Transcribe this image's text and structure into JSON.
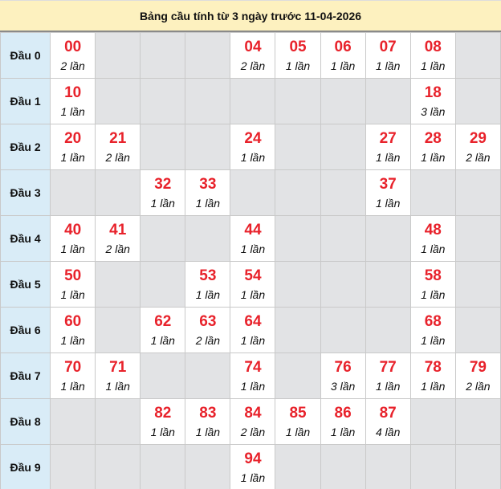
{
  "title": "Bảng cầu tính từ 3 ngày trước 11-04-2026",
  "colors": {
    "header_bg": "#fdf1bf",
    "label_bg": "#d9ecf7",
    "empty_bg": "#e2e3e5",
    "number": "#e8222b"
  },
  "rows": [
    {
      "label": "Đầu 0",
      "cells": [
        {
          "num": "00",
          "count": "2 lần"
        },
        null,
        null,
        null,
        {
          "num": "04",
          "count": "2 lần"
        },
        {
          "num": "05",
          "count": "1 lần"
        },
        {
          "num": "06",
          "count": "1 lần"
        },
        {
          "num": "07",
          "count": "1 lần"
        },
        {
          "num": "08",
          "count": "1 lần"
        },
        null
      ]
    },
    {
      "label": "Đầu 1",
      "cells": [
        {
          "num": "10",
          "count": "1 lần"
        },
        null,
        null,
        null,
        null,
        null,
        null,
        null,
        {
          "num": "18",
          "count": "3 lần"
        },
        null
      ]
    },
    {
      "label": "Đầu 2",
      "cells": [
        {
          "num": "20",
          "count": "1 lần"
        },
        {
          "num": "21",
          "count": "2 lần"
        },
        null,
        null,
        {
          "num": "24",
          "count": "1 lần"
        },
        null,
        null,
        {
          "num": "27",
          "count": "1 lần"
        },
        {
          "num": "28",
          "count": "1 lần"
        },
        {
          "num": "29",
          "count": "2 lần"
        }
      ]
    },
    {
      "label": "Đầu 3",
      "cells": [
        null,
        null,
        {
          "num": "32",
          "count": "1 lần"
        },
        {
          "num": "33",
          "count": "1 lần"
        },
        null,
        null,
        null,
        {
          "num": "37",
          "count": "1 lần"
        },
        null,
        null
      ]
    },
    {
      "label": "Đầu 4",
      "cells": [
        {
          "num": "40",
          "count": "1 lần"
        },
        {
          "num": "41",
          "count": "2 lần"
        },
        null,
        null,
        {
          "num": "44",
          "count": "1 lần"
        },
        null,
        null,
        null,
        {
          "num": "48",
          "count": "1 lần"
        },
        null
      ]
    },
    {
      "label": "Đầu 5",
      "cells": [
        {
          "num": "50",
          "count": "1 lần"
        },
        null,
        null,
        {
          "num": "53",
          "count": "1 lần"
        },
        {
          "num": "54",
          "count": "1 lần"
        },
        null,
        null,
        null,
        {
          "num": "58",
          "count": "1 lần"
        },
        null
      ]
    },
    {
      "label": "Đầu 6",
      "cells": [
        {
          "num": "60",
          "count": "1 lần"
        },
        null,
        {
          "num": "62",
          "count": "1 lần"
        },
        {
          "num": "63",
          "count": "2 lần"
        },
        {
          "num": "64",
          "count": "1 lần"
        },
        null,
        null,
        null,
        {
          "num": "68",
          "count": "1 lần"
        },
        null
      ]
    },
    {
      "label": "Đầu 7",
      "cells": [
        {
          "num": "70",
          "count": "1 lần"
        },
        {
          "num": "71",
          "count": "1 lần"
        },
        null,
        null,
        {
          "num": "74",
          "count": "1 lần"
        },
        null,
        {
          "num": "76",
          "count": "3 lần"
        },
        {
          "num": "77",
          "count": "1 lần"
        },
        {
          "num": "78",
          "count": "1 lần"
        },
        {
          "num": "79",
          "count": "2 lần"
        }
      ]
    },
    {
      "label": "Đầu 8",
      "cells": [
        null,
        null,
        {
          "num": "82",
          "count": "1 lần"
        },
        {
          "num": "83",
          "count": "1 lần"
        },
        {
          "num": "84",
          "count": "2 lần"
        },
        {
          "num": "85",
          "count": "1 lần"
        },
        {
          "num": "86",
          "count": "1 lần"
        },
        {
          "num": "87",
          "count": "4 lần"
        },
        null,
        null
      ]
    },
    {
      "label": "Đầu 9",
      "cells": [
        null,
        null,
        null,
        null,
        {
          "num": "94",
          "count": "1 lần"
        },
        null,
        null,
        null,
        null,
        null
      ]
    }
  ]
}
